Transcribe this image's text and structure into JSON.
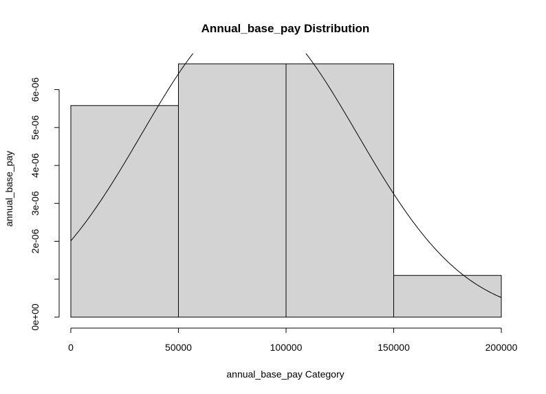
{
  "chart_data": {
    "type": "bar",
    "title": "Annual_base_pay Distribution",
    "xlabel": "annual_base_pay Category",
    "ylabel": "annual_base_pay",
    "bins": [
      {
        "from": 0,
        "to": 50000,
        "density": 5.58e-06
      },
      {
        "from": 50000,
        "to": 100000,
        "density": 6.68e-06
      },
      {
        "from": 100000,
        "to": 150000,
        "density": 6.68e-06
      },
      {
        "from": 150000,
        "to": 200000,
        "density": 1.1e-06
      }
    ],
    "curve": {
      "type": "normal-density",
      "mean": 83000,
      "sd": 50000
    },
    "xlim": [
      0,
      200000
    ],
    "ylim": [
      0,
      6.68e-06
    ],
    "x_ticks": [
      0,
      50000,
      100000,
      150000,
      200000
    ],
    "x_tick_labels": [
      "0",
      "50000",
      "100000",
      "150000",
      "200000"
    ],
    "y_ticks": [
      0,
      1e-06,
      2e-06,
      3e-06,
      4e-06,
      5e-06,
      6e-06
    ],
    "y_tick_labels": [
      "0e+00",
      "",
      "2e-06",
      "3e-06",
      "4e-06",
      "5e-06",
      "6e-06"
    ],
    "bar_fill": "#d3d3d3",
    "bar_stroke": "#000000",
    "grid": false,
    "legend": "none"
  }
}
